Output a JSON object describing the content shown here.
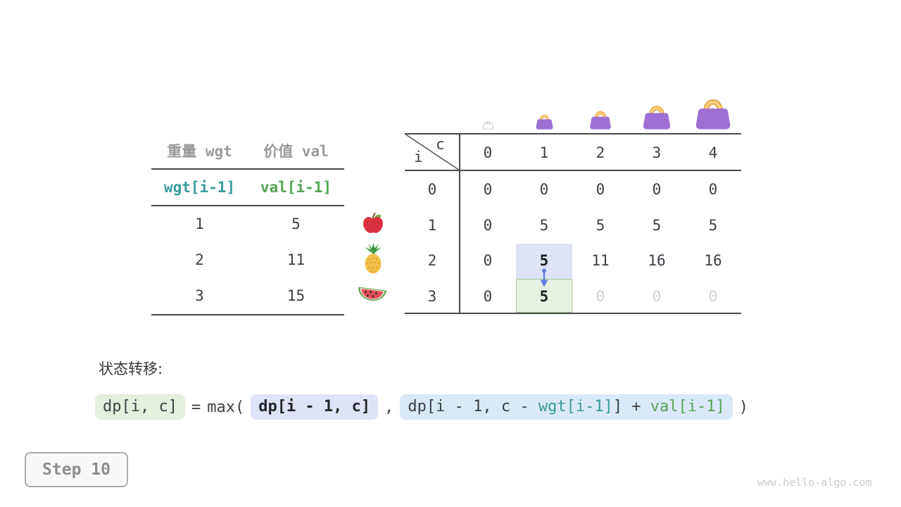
{
  "page": {
    "step_label": "Step 10",
    "watermark": "www.hello-algo.com"
  },
  "colors": {
    "text": "#3b4045",
    "muted": "#d0d0d0",
    "gray_header": "#9a9a9a",
    "line": "#4a4a4a",
    "teal": "#399c9c",
    "green": "#55a555",
    "highlight_blue": "#dfe3f8",
    "highlight_green": "#e7f1e2",
    "highlight_green_border": "#a3c89b",
    "pill_green": "#e4efdd",
    "pill_blue": "#d9e9f7",
    "arrow": "#6379e0",
    "bag_purple": "#9d6fd2",
    "bag_handle_dark": "#e8a843",
    "bag_handle_light": "#fdd488"
  },
  "items_table": {
    "col_headers": [
      "重量 wgt",
      "价值 val"
    ],
    "subheaders": [
      "wgt[i-1]",
      "val[i-1]"
    ],
    "rows": [
      [
        "1",
        "5"
      ],
      [
        "2",
        "11"
      ],
      [
        "3",
        "15"
      ]
    ],
    "fruit_icons": [
      "apple-icon",
      "pineapple-icon",
      "watermelon-icon"
    ]
  },
  "dp_table": {
    "corner": {
      "row_var": "i",
      "col_var": "c"
    },
    "col_headers": [
      "0",
      "1",
      "2",
      "3",
      "4"
    ],
    "row_headers": [
      "0",
      "1",
      "2",
      "3"
    ],
    "cells": [
      [
        "0",
        "0",
        "0",
        "0",
        "0"
      ],
      [
        "0",
        "5",
        "5",
        "5",
        "5"
      ],
      [
        "0",
        "5",
        "11",
        "16",
        "16"
      ],
      [
        "0",
        "5",
        "0",
        "0",
        "0"
      ]
    ],
    "muted_cells": [
      [
        3,
        2
      ],
      [
        3,
        3
      ],
      [
        3,
        4
      ]
    ],
    "bold_cells": [
      [
        2,
        1
      ],
      [
        3,
        1
      ]
    ],
    "highlight_source": {
      "row": 2,
      "col": 1
    },
    "highlight_target": {
      "row": 3,
      "col": 1
    },
    "bag_icons": [
      "bag-outline-icon",
      "bag-icon",
      "bag-icon",
      "bag-icon",
      "bag-icon"
    ]
  },
  "formula": {
    "label": "状态转移:",
    "lhs": "dp[i, c]",
    "eq": "=",
    "open": "max(",
    "arg1": "dp[i - 1, c]",
    "comma": ",",
    "arg2_pre": "dp[i - 1, c - ",
    "arg2_wgt": "wgt[i-1]",
    "arg2_mid": "] + ",
    "arg2_val": "val[i-1]",
    "close": ")"
  }
}
